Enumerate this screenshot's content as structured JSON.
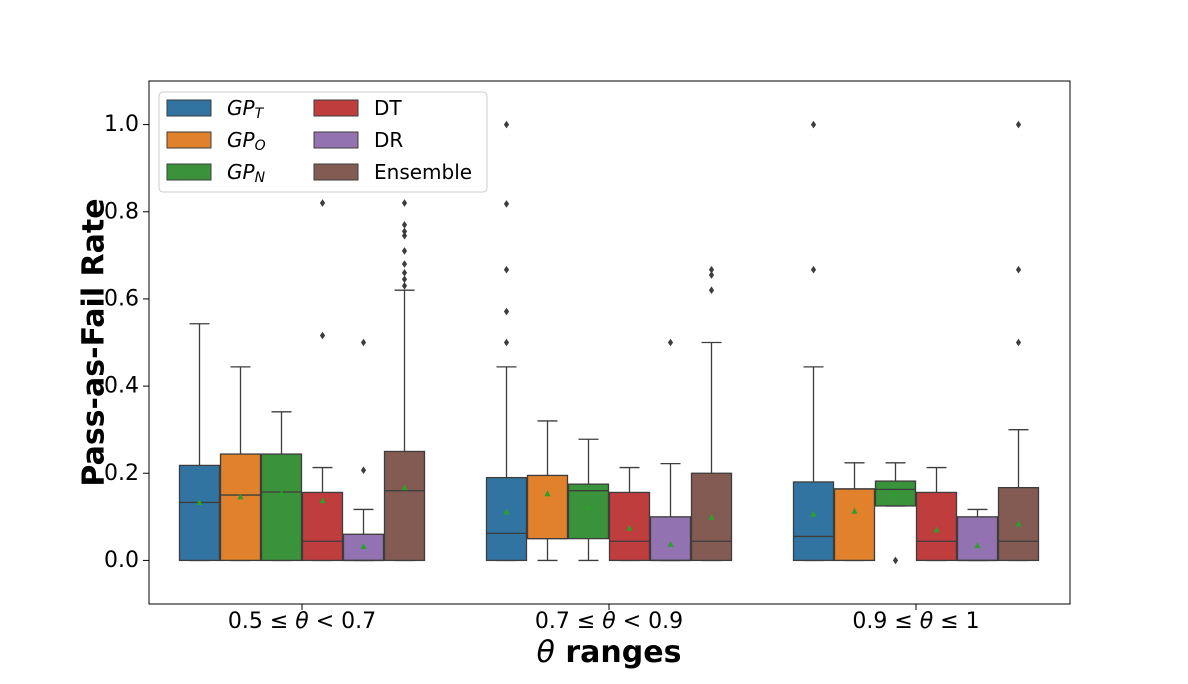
{
  "chart_data": {
    "type": "box",
    "title": "",
    "xlabel": "θ ranges",
    "ylabel": "Pass-as-Fail Rate",
    "ylim": [
      -0.1,
      1.1
    ],
    "yticks": [
      0.0,
      0.2,
      0.4,
      0.6,
      0.8,
      1.0
    ],
    "ytick_labels": [
      "0.0",
      "0.2",
      "0.4",
      "0.6",
      "0.8",
      "1.0"
    ],
    "grid": false,
    "legend_position": "top-left",
    "legend_columns": 2,
    "categories": [
      "0.5 ≤ θ < 0.7",
      "0.7 ≤ θ < 0.9",
      "0.9 ≤ θ ≤ 1"
    ],
    "series": [
      {
        "name": "GP_T",
        "label_main": "GP",
        "label_sub": "T",
        "color": "#3274a1",
        "boxes": [
          {
            "whislo": 0.0,
            "q1": 0.0,
            "med": 0.133,
            "q3": 0.218,
            "whishi": 0.543,
            "mean": 0.134,
            "fliers": []
          },
          {
            "whislo": 0.0,
            "q1": 0.0,
            "med": 0.062,
            "q3": 0.19,
            "whishi": 0.444,
            "mean": 0.112,
            "fliers": [
              0.5,
              0.571,
              0.667,
              0.818,
              1.0
            ]
          },
          {
            "whislo": 0.0,
            "q1": 0.0,
            "med": 0.055,
            "q3": 0.18,
            "whishi": 0.444,
            "mean": 0.107,
            "fliers": [
              0.667,
              1.0
            ]
          }
        ]
      },
      {
        "name": "GP_O",
        "label_main": "GP",
        "label_sub": "O",
        "color": "#e1812c",
        "boxes": [
          {
            "whislo": 0.0,
            "q1": 0.0,
            "med": 0.15,
            "q3": 0.244,
            "whishi": 0.444,
            "mean": 0.147,
            "fliers": []
          },
          {
            "whislo": 0.0,
            "q1": 0.05,
            "med": 0.05,
            "q3": 0.195,
            "whishi": 0.32,
            "mean": 0.154,
            "fliers": []
          },
          {
            "whislo": 0.0,
            "q1": 0.0,
            "med": 0.164,
            "q3": 0.164,
            "whishi": 0.224,
            "mean": 0.114,
            "fliers": []
          }
        ]
      },
      {
        "name": "GP_N",
        "label_main": "GP",
        "label_sub": "N",
        "color": "#3a923a",
        "boxes": [
          {
            "whislo": 0.0,
            "q1": 0.0,
            "med": 0.157,
            "q3": 0.244,
            "whishi": 0.341,
            "mean": 0.154,
            "fliers": []
          },
          {
            "whislo": 0.0,
            "q1": 0.05,
            "med": 0.16,
            "q3": 0.175,
            "whishi": 0.278,
            "mean": 0.124,
            "fliers": []
          },
          {
            "whislo": 0.125,
            "q1": 0.125,
            "med": 0.163,
            "q3": 0.182,
            "whishi": 0.224,
            "mean": 0.152,
            "fliers": [
              0.0
            ]
          }
        ]
      },
      {
        "name": "DT",
        "label_main": "DT",
        "label_sub": "",
        "color": "#c03d3e",
        "boxes": [
          {
            "whislo": 0.0,
            "q1": 0.0,
            "med": 0.044,
            "q3": 0.156,
            "whishi": 0.213,
            "mean": 0.138,
            "fliers": [
              0.516,
              0.82
            ]
          },
          {
            "whislo": 0.0,
            "q1": 0.0,
            "med": 0.044,
            "q3": 0.156,
            "whishi": 0.213,
            "mean": 0.075,
            "fliers": []
          },
          {
            "whislo": 0.0,
            "q1": 0.0,
            "med": 0.044,
            "q3": 0.156,
            "whishi": 0.213,
            "mean": 0.071,
            "fliers": []
          }
        ]
      },
      {
        "name": "DR",
        "label_main": "DR",
        "label_sub": "",
        "color": "#9372b2",
        "boxes": [
          {
            "whislo": 0.0,
            "q1": 0.0,
            "med": 0.0,
            "q3": 0.06,
            "whishi": 0.117,
            "mean": 0.033,
            "fliers": [
              0.207,
              0.5
            ]
          },
          {
            "whislo": 0.0,
            "q1": 0.0,
            "med": 0.0,
            "q3": 0.1,
            "whishi": 0.222,
            "mean": 0.038,
            "fliers": [
              0.5
            ]
          },
          {
            "whislo": 0.0,
            "q1": 0.0,
            "med": 0.0,
            "q3": 0.1,
            "whishi": 0.117,
            "mean": 0.035,
            "fliers": []
          }
        ]
      },
      {
        "name": "Ensemble",
        "label_main": "Ensemble",
        "label_sub": "",
        "color": "#845b53",
        "boxes": [
          {
            "whislo": 0.0,
            "q1": 0.0,
            "med": 0.16,
            "q3": 0.25,
            "whishi": 0.62,
            "mean": 0.168,
            "fliers": [
              0.63,
              0.645,
              0.66,
              0.68,
              0.71,
              0.745,
              0.755,
              0.77,
              0.82
            ]
          },
          {
            "whislo": 0.0,
            "q1": 0.0,
            "med": 0.044,
            "q3": 0.2,
            "whishi": 0.5,
            "mean": 0.1,
            "fliers": [
              0.62,
              0.655,
              0.667
            ]
          },
          {
            "whislo": 0.0,
            "q1": 0.0,
            "med": 0.044,
            "q3": 0.167,
            "whishi": 0.3,
            "mean": 0.085,
            "fliers": [
              0.5,
              0.667,
              1.0
            ]
          }
        ]
      }
    ]
  }
}
